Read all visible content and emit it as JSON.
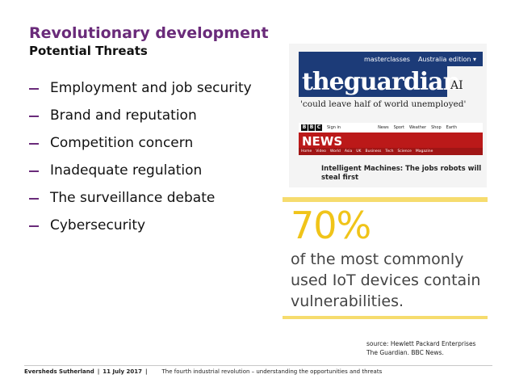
{
  "slide": {
    "title": "Revolutionary development",
    "subtitle": "Potential Threats",
    "bullets": [
      "Employment and job security",
      "Brand and reputation",
      "Competition concern",
      "Inadequate regulation",
      "The surveillance debate",
      "Cybersecurity"
    ]
  },
  "collage": {
    "guardian_bar": [
      "masterclasses",
      "Australia edition ▾"
    ],
    "guardian_logo": "theguardian",
    "guardian_ai": "AI",
    "guardian_headline": "'could leave half of world unemployed'",
    "bbc_blocks": [
      "B",
      "B",
      "C"
    ],
    "bbc_signin": "Sign in",
    "bbc_top_links": [
      "News",
      "Sport",
      "Weather",
      "Shop",
      "Earth"
    ],
    "bbc_news_label": "NEWS",
    "bbc_nav": [
      "Home",
      "Video",
      "World",
      "Asia",
      "UK",
      "Business",
      "Tech",
      "Science",
      "Magazine"
    ],
    "bbc_headline": "Intelligent Machines: The jobs robots will steal first"
  },
  "stat": {
    "number": "70%",
    "text": "of the most commonly used IoT devices contain vulnerabilities.",
    "accent": "#f0c419"
  },
  "source": {
    "line1": "source: Hewlett Packard Enterprises",
    "line2": "The Guardian. BBC News."
  },
  "footer": {
    "brand": "Eversheds Sutherland",
    "date": "11 July 2017",
    "subject": "The fourth industrial revolution – understanding the opportunities and threats"
  },
  "colors": {
    "title": "#6a2b7a",
    "guardian_blue": "#1c3b78",
    "bbc_red": "#bb1919"
  }
}
